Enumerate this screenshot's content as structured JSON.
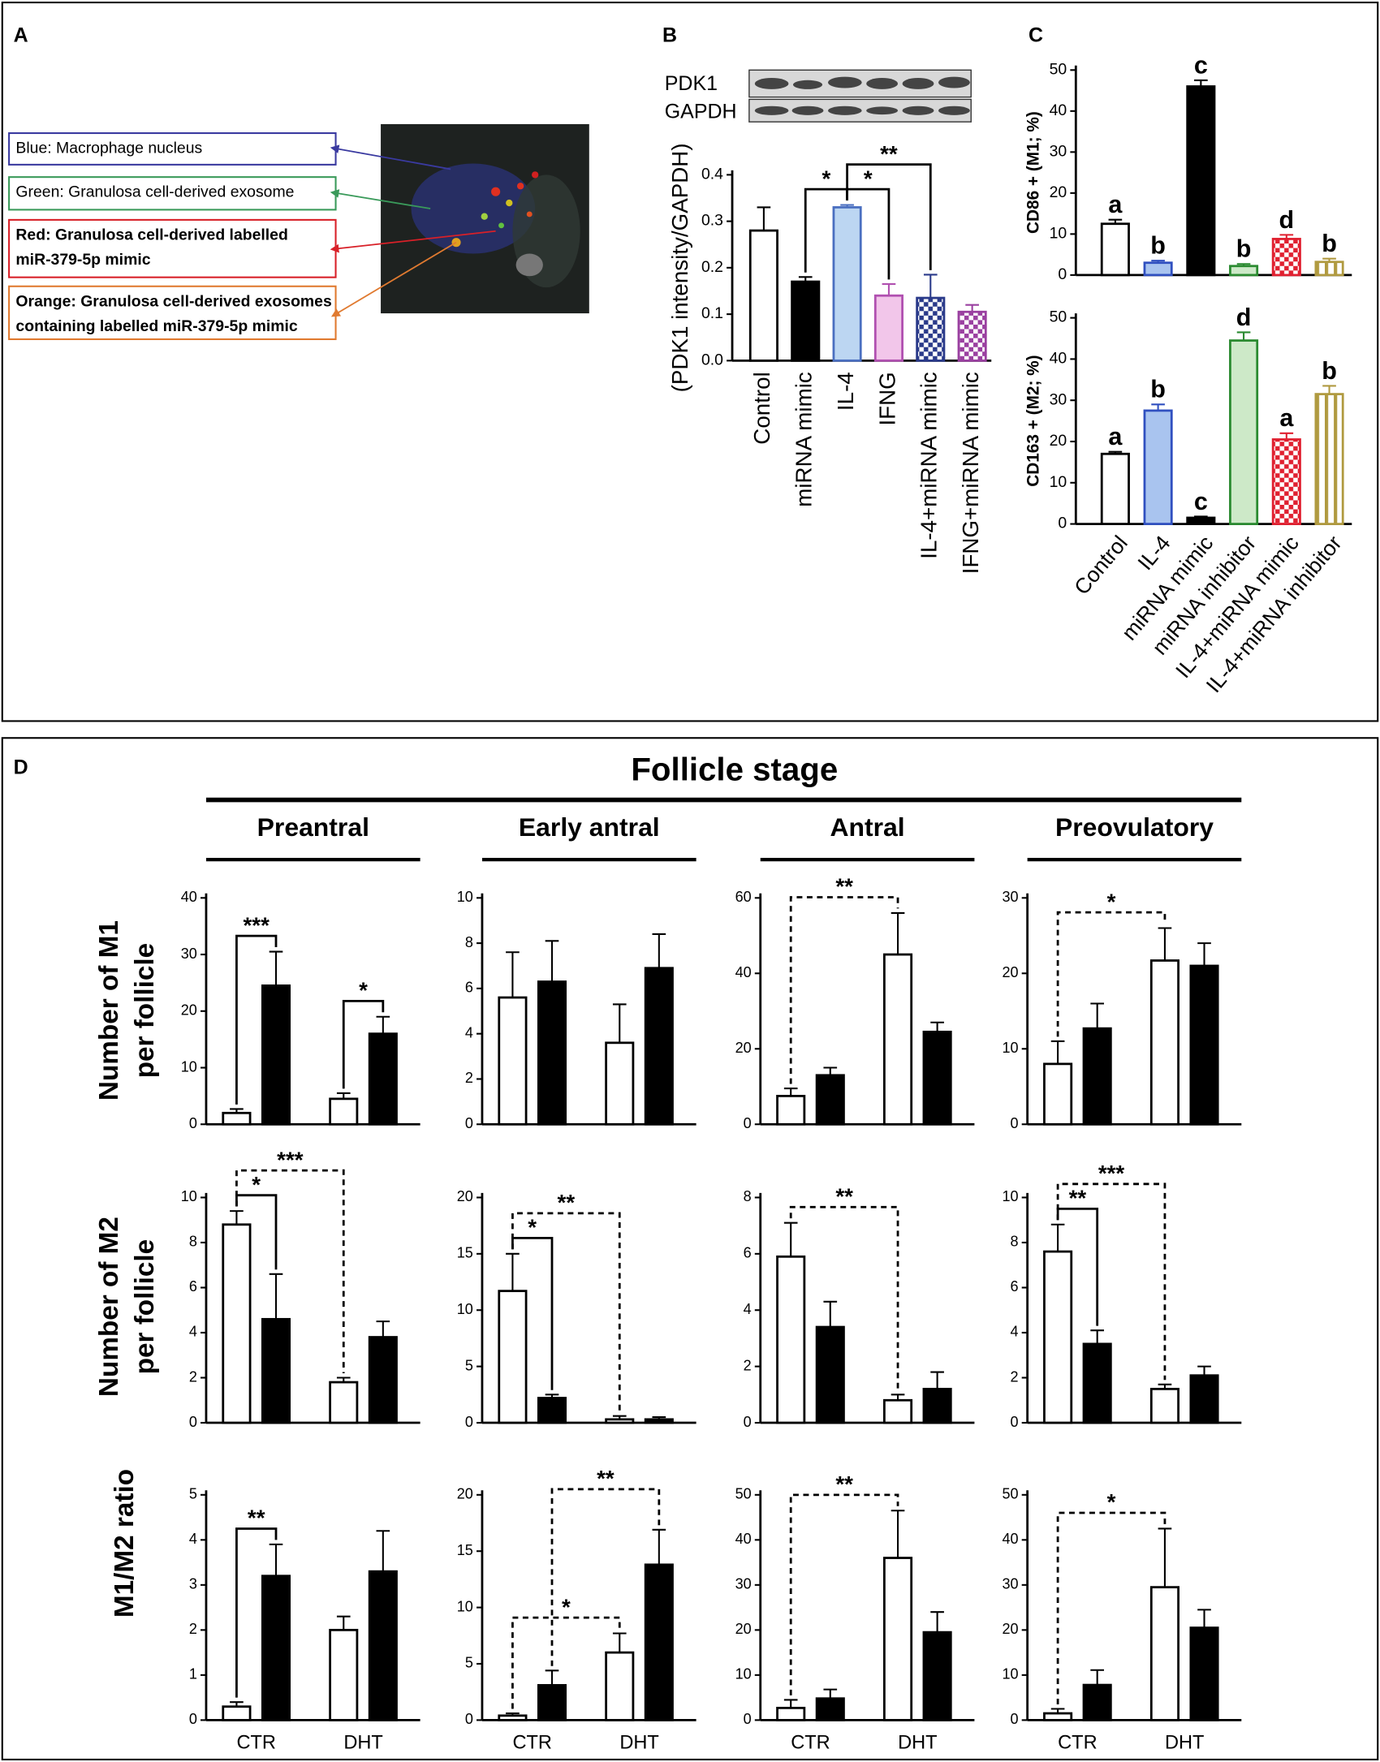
{
  "panel_labels": [
    "A",
    "B",
    "C",
    "D"
  ],
  "panel_a": {
    "labels": [
      {
        "lines": [
          "Blue: Macrophage nucleus"
        ],
        "color": "#3a3aa0"
      },
      {
        "lines": [
          "Green: Granulosa cell-derived exosome"
        ],
        "color": "#3a9a5a"
      },
      {
        "lines": [
          "Red: Granulosa cell-derived labelled",
          "miR-379-5p mimic"
        ],
        "color": "#d82028"
      },
      {
        "lines": [
          "Orange: Granulosa cell-derived exosomes",
          "containing labelled miR-379-5p mimic"
        ],
        "color": "#e07a30"
      }
    ]
  },
  "blot": {
    "labels": [
      "PDK1",
      "GAPDH"
    ]
  },
  "panel_d": {
    "title": "Follicle stage",
    "stages": [
      "Preantral",
      "Early antral",
      "Antral",
      "Preovulatory"
    ],
    "row_labels": [
      [
        "Number of M1",
        "per follicle"
      ],
      [
        "Number of M2",
        "per follicle"
      ],
      [
        "M1/M2 ratio"
      ]
    ]
  },
  "chart_data": [
    {
      "type": "bar",
      "ylabel": "(PDK1 intensity/GAPDH)",
      "categories": [
        "Control",
        "miRNA mimic",
        "IL-4",
        "IFNG",
        "IL-4+miRNA mimic",
        "IFNG+miRNA mimic"
      ],
      "values": [
        0.28,
        0.17,
        0.33,
        0.14,
        0.135,
        0.105
      ],
      "errors": [
        0.05,
        0.01,
        0.005,
        0.025,
        0.05,
        0.015
      ],
      "colors": [
        "#ffffff",
        "#000000",
        "#bcd6f2",
        "#f2c6ea",
        "#2a3a8a",
        "#9a40a0"
      ],
      "edge_colors": [
        "#000000",
        "#000000",
        "#4a6fc0",
        "#b050b0",
        "#2a3a8a",
        "#9a40a0"
      ],
      "patterns": [
        "solid",
        "solid",
        "solid",
        "solid",
        "checker",
        "checker"
      ],
      "ylim": [
        0,
        0.4
      ],
      "yticks": [
        {
          "value": 0,
          "label": "0.0"
        },
        0.1,
        0.2,
        0.3,
        0.4
      ],
      "brackets": [
        {
          "from": 1,
          "to": 2,
          "label": "*"
        },
        {
          "from": 2,
          "to": 3,
          "label": "*"
        },
        {
          "from": 2,
          "to": 4,
          "label": "**"
        }
      ]
    },
    {
      "type": "bar",
      "ylabel": "CD86 + (M1; %)",
      "values": [
        12.5,
        3,
        46,
        2.2,
        8.8,
        3.2
      ],
      "errors": [
        1,
        0.5,
        1.5,
        0.5,
        1,
        0.8
      ],
      "letters": [
        "a",
        "b",
        "c",
        "b",
        "d",
        "b"
      ],
      "colors": [
        "#ffffff",
        "#a9c4ef",
        "#000000",
        "#cde9c8",
        "#e02030",
        "#b09a40"
      ],
      "edge_colors": [
        "#000000",
        "#3050c0",
        "#000000",
        "#2a8a30",
        "#e02030",
        "#b09a40"
      ],
      "patterns": [
        "solid",
        "solid",
        "solid",
        "solid",
        "checker",
        "stripes"
      ],
      "ylim": [
        0,
        50
      ],
      "yticks": [
        0,
        10,
        20,
        30,
        40,
        50
      ]
    },
    {
      "type": "bar",
      "ylabel": "CD163 + (M2; %)",
      "categories": [
        "Control",
        "IL-4",
        "miRNA mimic",
        "miRNA inhibitor",
        "IL-4+miRNA mimic",
        "IL-4+miRNA inhibitor"
      ],
      "values": [
        17,
        27.5,
        1.5,
        44.5,
        20.5,
        31.5
      ],
      "errors": [
        0.5,
        1.5,
        0.3,
        2,
        1.5,
        2
      ],
      "letters": [
        "a",
        "b",
        "c",
        "d",
        "a",
        "b"
      ],
      "colors": [
        "#ffffff",
        "#a9c4ef",
        "#000000",
        "#cde9c8",
        "#e02030",
        "#b09a40"
      ],
      "edge_colors": [
        "#000000",
        "#3050c0",
        "#000000",
        "#2a8a30",
        "#e02030",
        "#b09a40"
      ],
      "patterns": [
        "solid",
        "solid",
        "solid",
        "solid",
        "checker",
        "stripes"
      ],
      "ylim": [
        0,
        50
      ],
      "yticks": [
        0,
        10,
        20,
        30,
        40,
        50
      ]
    },
    {
      "type": "bar",
      "ylim": [
        0,
        40
      ],
      "yticks": [
        0,
        10,
        20,
        30,
        40
      ],
      "series": [
        {
          "color": "#ffffff",
          "values": [
            2,
            4.5
          ],
          "errors": [
            0.7,
            1
          ]
        },
        {
          "color": "#000000",
          "values": [
            24.5,
            16
          ],
          "errors": [
            6,
            3
          ]
        }
      ],
      "brackets": [
        {
          "from": 0,
          "to": 1,
          "label": "***"
        },
        {
          "from": 2,
          "to": 3,
          "label": "*"
        }
      ]
    },
    {
      "type": "bar",
      "ylim": [
        0,
        10
      ],
      "yticks": [
        0,
        2,
        4,
        6,
        8,
        10
      ],
      "series": [
        {
          "color": "#ffffff",
          "values": [
            5.6,
            3.6
          ],
          "errors": [
            2,
            1.7
          ]
        },
        {
          "color": "#000000",
          "values": [
            6.3,
            6.9
          ],
          "errors": [
            1.8,
            1.5
          ]
        }
      ]
    },
    {
      "type": "bar",
      "ylim": [
        0,
        60
      ],
      "yticks": [
        0,
        20,
        40,
        60
      ],
      "series": [
        {
          "color": "#ffffff",
          "values": [
            7.5,
            45
          ],
          "errors": [
            2,
            11
          ]
        },
        {
          "color": "#000000",
          "values": [
            13,
            24.5
          ],
          "errors": [
            2,
            2.5
          ]
        }
      ],
      "brackets": [
        {
          "from": 0,
          "to": 2,
          "label": "**",
          "dashed": true
        }
      ]
    },
    {
      "type": "bar",
      "ylim": [
        0,
        30
      ],
      "yticks": [
        0,
        10,
        20,
        30
      ],
      "series": [
        {
          "color": "#ffffff",
          "values": [
            8,
            21.7
          ],
          "errors": [
            3,
            4.3
          ]
        },
        {
          "color": "#000000",
          "values": [
            12.7,
            21
          ],
          "errors": [
            3.3,
            3
          ]
        }
      ],
      "brackets": [
        {
          "from": 0,
          "to": 2,
          "label": "*",
          "dashed": true
        }
      ]
    },
    {
      "type": "bar",
      "ylim": [
        0,
        10
      ],
      "yticks": [
        0,
        2,
        4,
        6,
        8,
        10
      ],
      "series": [
        {
          "color": "#ffffff",
          "values": [
            8.8,
            1.8
          ],
          "errors": [
            0.6,
            0.2
          ]
        },
        {
          "color": "#000000",
          "values": [
            4.6,
            3.8
          ],
          "errors": [
            2,
            0.7
          ]
        }
      ],
      "brackets": [
        {
          "from": 0,
          "to": 1,
          "label": "*"
        },
        {
          "from": 0,
          "to": 2,
          "label": "***",
          "dashed": true
        }
      ]
    },
    {
      "type": "bar",
      "ylim": [
        0,
        20
      ],
      "yticks": [
        0,
        5,
        10,
        15,
        20
      ],
      "series": [
        {
          "color": "#ffffff",
          "values": [
            11.7,
            0.3
          ],
          "errors": [
            3.3,
            0.3
          ]
        },
        {
          "color": "#000000",
          "values": [
            2.2,
            0.3
          ],
          "errors": [
            0.3,
            0.2
          ]
        }
      ],
      "brackets": [
        {
          "from": 0,
          "to": 1,
          "label": "*"
        },
        {
          "from": 0,
          "to": 2,
          "label": "**",
          "dashed": true
        }
      ]
    },
    {
      "type": "bar",
      "ylim": [
        0,
        8
      ],
      "yticks": [
        0,
        2,
        4,
        6,
        8
      ],
      "series": [
        {
          "color": "#ffffff",
          "values": [
            5.9,
            0.8
          ],
          "errors": [
            1.2,
            0.2
          ]
        },
        {
          "color": "#000000",
          "values": [
            3.4,
            1.2
          ],
          "errors": [
            0.9,
            0.6
          ]
        }
      ],
      "brackets": [
        {
          "from": 0,
          "to": 2,
          "label": "**",
          "dashed": true
        }
      ]
    },
    {
      "type": "bar",
      "ylim": [
        0,
        10
      ],
      "yticks": [
        0,
        2,
        4,
        6,
        8,
        10
      ],
      "series": [
        {
          "color": "#ffffff",
          "values": [
            7.6,
            1.5
          ],
          "errors": [
            1.2,
            0.2
          ]
        },
        {
          "color": "#000000",
          "values": [
            3.5,
            2.1
          ],
          "errors": [
            0.6,
            0.4
          ]
        }
      ],
      "brackets": [
        {
          "from": 0,
          "to": 1,
          "label": "**"
        },
        {
          "from": 0,
          "to": 2,
          "label": "***",
          "dashed": true
        }
      ]
    },
    {
      "type": "bar",
      "ylim": [
        0,
        5
      ],
      "yticks": [
        0,
        1,
        2,
        3,
        4,
        5
      ],
      "categories": [
        "CTR",
        "DHT"
      ],
      "series": [
        {
          "color": "#ffffff",
          "values": [
            0.3,
            2
          ],
          "errors": [
            0.1,
            0.3
          ]
        },
        {
          "color": "#000000",
          "values": [
            3.2,
            3.3
          ],
          "errors": [
            0.7,
            0.9
          ]
        }
      ],
      "brackets": [
        {
          "from": 0,
          "to": 1,
          "label": "**"
        }
      ]
    },
    {
      "type": "bar",
      "ylim": [
        0,
        20
      ],
      "yticks": [
        0,
        5,
        10,
        15,
        20
      ],
      "categories": [
        "CTR",
        "DHT"
      ],
      "series": [
        {
          "color": "#ffffff",
          "values": [
            0.4,
            6
          ],
          "errors": [
            0.2,
            1.7
          ]
        },
        {
          "color": "#000000",
          "values": [
            3.1,
            13.8
          ],
          "errors": [
            1.3,
            3.1
          ]
        }
      ],
      "brackets": [
        {
          "from": 0,
          "to": 2,
          "label": "*",
          "dashed": true
        },
        {
          "from": 1,
          "to": 3,
          "label": "**",
          "dashed": true
        }
      ]
    },
    {
      "type": "bar",
      "ylim": [
        0,
        50
      ],
      "yticks": [
        0,
        10,
        20,
        30,
        40,
        50
      ],
      "categories": [
        "CTR",
        "DHT"
      ],
      "series": [
        {
          "color": "#ffffff",
          "values": [
            2.7,
            36
          ],
          "errors": [
            1.8,
            10.5
          ]
        },
        {
          "color": "#000000",
          "values": [
            4.8,
            19.5
          ],
          "errors": [
            2,
            4.5
          ]
        }
      ],
      "brackets": [
        {
          "from": 0,
          "to": 2,
          "label": "**",
          "dashed": true
        }
      ]
    },
    {
      "type": "bar",
      "ylim": [
        0,
        50
      ],
      "yticks": [
        0,
        10,
        20,
        30,
        40,
        50
      ],
      "categories": [
        "CTR",
        "DHT"
      ],
      "series": [
        {
          "color": "#ffffff",
          "values": [
            1.5,
            29.5
          ],
          "errors": [
            1,
            13
          ]
        },
        {
          "color": "#000000",
          "values": [
            7.8,
            20.5
          ],
          "errors": [
            3.3,
            4
          ]
        }
      ],
      "brackets": [
        {
          "from": 0,
          "to": 2,
          "label": "*",
          "dashed": true
        }
      ]
    }
  ]
}
